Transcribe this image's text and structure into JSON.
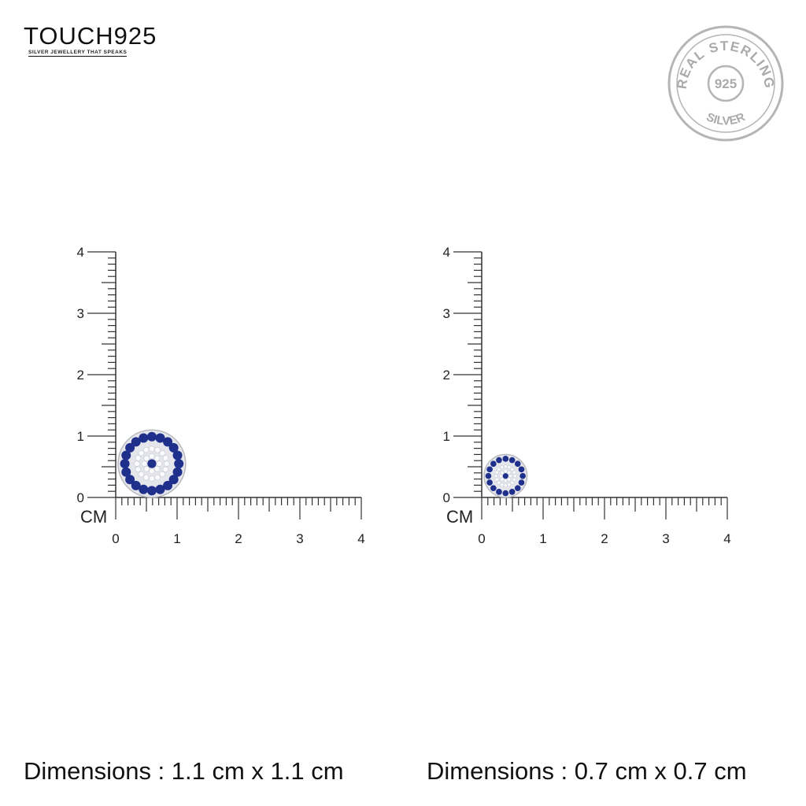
{
  "brand": {
    "name": "TOUCH925",
    "tagline": "SILVER JEWELLERY THAT SPEAKS"
  },
  "seal": {
    "top": "REAL STERLING",
    "center": "925",
    "bottom": "SILVER"
  },
  "rulers": [
    {
      "unit": "CM",
      "ticks": [
        "0",
        "1",
        "2",
        "3",
        "4"
      ],
      "item_size_cm": 1.1,
      "caption": "Dimensions : 1.1 cm x 1.1 cm"
    },
    {
      "unit": "CM",
      "ticks": [
        "0",
        "1",
        "2",
        "3",
        "4"
      ],
      "item_size_cm": 0.7,
      "caption": "Dimensions : 0.7 cm x 0.7 cm"
    }
  ],
  "colors": {
    "sapphire": "#1f2f8c",
    "ruler": "#333333",
    "seal": "#b0b0b0"
  }
}
